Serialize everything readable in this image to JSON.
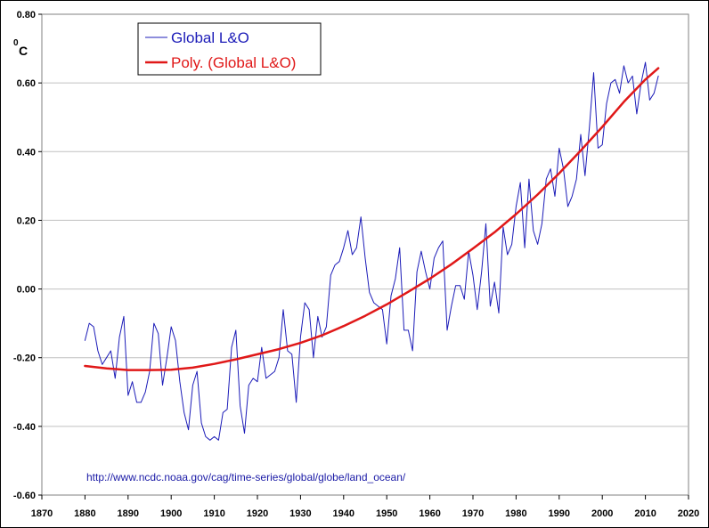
{
  "chart_data": {
    "type": "line",
    "title": "",
    "xlabel": "",
    "ylabel": "",
    "unit_superscript": "0",
    "unit_letter": "C",
    "xlim": [
      1870,
      2020
    ],
    "ylim": [
      -0.6,
      0.8
    ],
    "x_ticks": [
      1870,
      1880,
      1890,
      1900,
      1910,
      1920,
      1930,
      1940,
      1950,
      1960,
      1970,
      1980,
      1990,
      2000,
      2010,
      2020
    ],
    "y_ticks": [
      -0.6,
      -0.4,
      -0.2,
      0.0,
      0.2,
      0.4,
      0.6,
      0.8
    ],
    "y_tick_labels": [
      "-0.60",
      "-0.40",
      "-0.20",
      "0.00",
      "0.20",
      "0.40",
      "0.60",
      "0.80"
    ],
    "grid": "horizontal",
    "legend_position": "top-left",
    "annotation": "http://www.ncdc.noaa.gov/cag/time-series/global/globe/land_ocean/",
    "series": [
      {
        "name": "Global L&O",
        "color": "#1c1cb8",
        "x": [
          1880,
          1881,
          1882,
          1883,
          1884,
          1885,
          1886,
          1887,
          1888,
          1889,
          1890,
          1891,
          1892,
          1893,
          1894,
          1895,
          1896,
          1897,
          1898,
          1899,
          1900,
          1901,
          1902,
          1903,
          1904,
          1905,
          1906,
          1907,
          1908,
          1909,
          1910,
          1911,
          1912,
          1913,
          1914,
          1915,
          1916,
          1917,
          1918,
          1919,
          1920,
          1921,
          1922,
          1923,
          1924,
          1925,
          1926,
          1927,
          1928,
          1929,
          1930,
          1931,
          1932,
          1933,
          1934,
          1935,
          1936,
          1937,
          1938,
          1939,
          1940,
          1941,
          1942,
          1943,
          1944,
          1945,
          1946,
          1947,
          1948,
          1949,
          1950,
          1951,
          1952,
          1953,
          1954,
          1955,
          1956,
          1957,
          1958,
          1959,
          1960,
          1961,
          1962,
          1963,
          1964,
          1965,
          1966,
          1967,
          1968,
          1969,
          1970,
          1971,
          1972,
          1973,
          1974,
          1975,
          1976,
          1977,
          1978,
          1979,
          1980,
          1981,
          1982,
          1983,
          1984,
          1985,
          1986,
          1987,
          1988,
          1989,
          1990,
          1991,
          1992,
          1993,
          1994,
          1995,
          1996,
          1997,
          1998,
          1999,
          2000,
          2001,
          2002,
          2003,
          2004,
          2005,
          2006,
          2007,
          2008,
          2009,
          2010,
          2011,
          2012,
          2013
        ],
        "y": [
          -0.15,
          -0.1,
          -0.11,
          -0.18,
          -0.22,
          -0.2,
          -0.18,
          -0.26,
          -0.14,
          -0.08,
          -0.31,
          -0.27,
          -0.33,
          -0.33,
          -0.3,
          -0.24,
          -0.1,
          -0.13,
          -0.28,
          -0.2,
          -0.11,
          -0.15,
          -0.27,
          -0.36,
          -0.41,
          -0.28,
          -0.24,
          -0.39,
          -0.43,
          -0.44,
          -0.43,
          -0.44,
          -0.36,
          -0.35,
          -0.17,
          -0.12,
          -0.34,
          -0.42,
          -0.28,
          -0.26,
          -0.27,
          -0.17,
          -0.26,
          -0.25,
          -0.24,
          -0.2,
          -0.06,
          -0.18,
          -0.19,
          -0.33,
          -0.14,
          -0.04,
          -0.06,
          -0.2,
          -0.08,
          -0.14,
          -0.11,
          0.04,
          0.07,
          0.08,
          0.12,
          0.17,
          0.1,
          0.12,
          0.21,
          0.09,
          -0.01,
          -0.04,
          -0.05,
          -0.06,
          -0.16,
          -0.02,
          0.03,
          0.12,
          -0.12,
          -0.12,
          -0.18,
          0.05,
          0.11,
          0.05,
          0.0,
          0.09,
          0.12,
          0.14,
          -0.12,
          -0.05,
          0.01,
          0.01,
          -0.03,
          0.11,
          0.04,
          -0.06,
          0.05,
          0.19,
          -0.05,
          0.02,
          -0.07,
          0.18,
          0.1,
          0.13,
          0.24,
          0.31,
          0.12,
          0.32,
          0.17,
          0.13,
          0.19,
          0.32,
          0.35,
          0.27,
          0.41,
          0.35,
          0.24,
          0.27,
          0.32,
          0.45,
          0.33,
          0.47,
          0.63,
          0.41,
          0.42,
          0.54,
          0.6,
          0.61,
          0.57,
          0.65,
          0.6,
          0.62,
          0.51,
          0.6,
          0.66,
          0.55,
          0.57,
          0.62
        ]
      },
      {
        "name": "Poly. (Global L&O)",
        "color": "#e01818",
        "x": [
          1880,
          1885,
          1890,
          1895,
          1900,
          1905,
          1910,
          1915,
          1920,
          1925,
          1930,
          1935,
          1940,
          1945,
          1950,
          1955,
          1960,
          1965,
          1970,
          1975,
          1980,
          1985,
          1990,
          1995,
          2000,
          2005,
          2010,
          2013
        ],
        "y": [
          -0.224,
          -0.231,
          -0.236,
          -0.236,
          -0.235,
          -0.229,
          -0.218,
          -0.205,
          -0.19,
          -0.175,
          -0.157,
          -0.135,
          -0.108,
          -0.078,
          -0.045,
          -0.008,
          0.03,
          0.072,
          0.118,
          0.165,
          0.218,
          0.275,
          0.337,
          0.403,
          0.472,
          0.545,
          0.61,
          0.643
        ]
      }
    ]
  }
}
